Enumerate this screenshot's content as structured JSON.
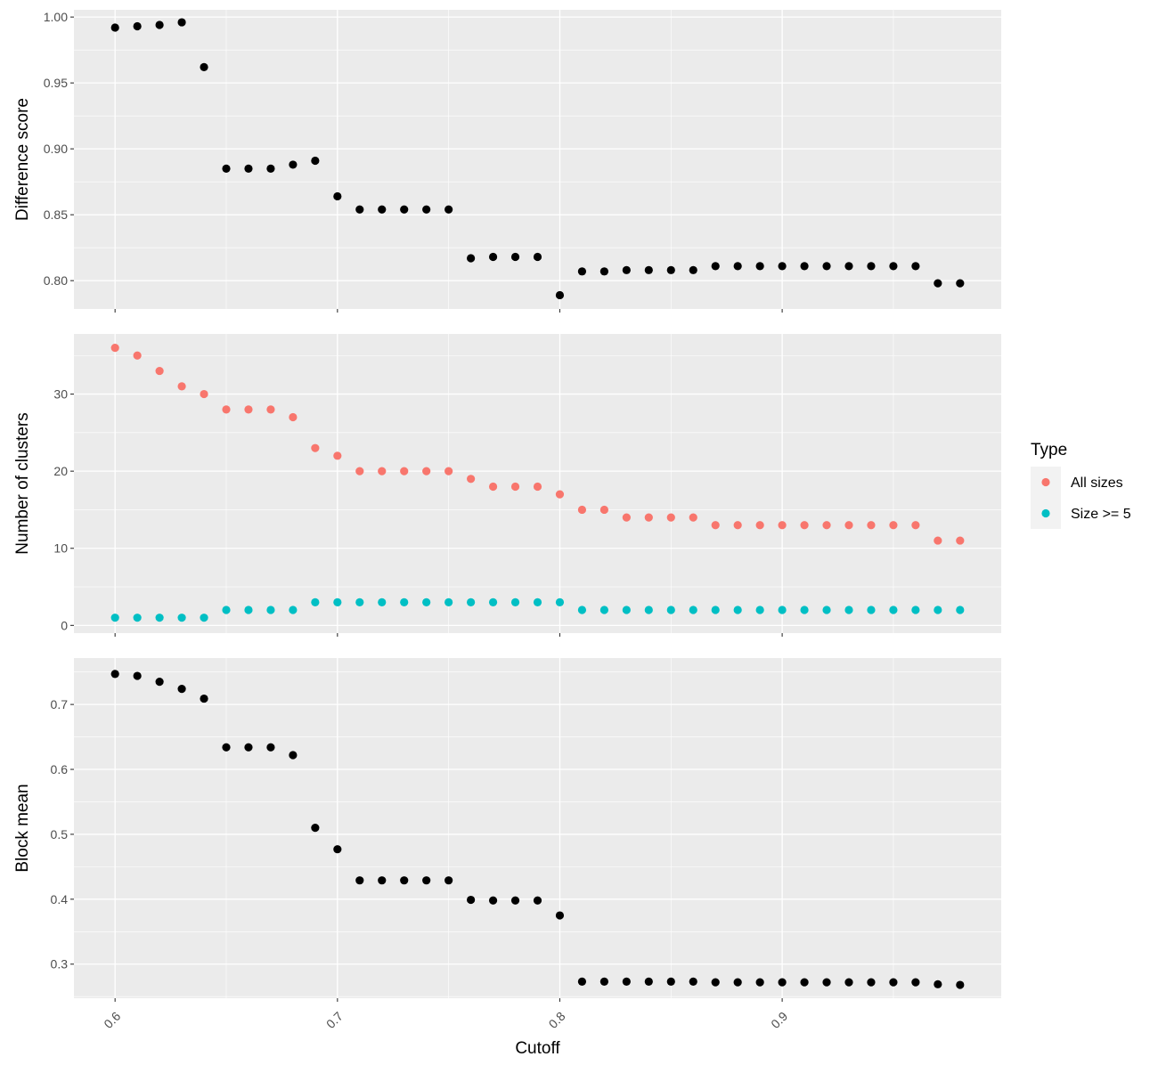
{
  "chart_data": [
    {
      "type": "scatter",
      "ylabel": "Difference score",
      "xlabel": "",
      "xlim": [
        0.5815,
        0.9985
      ],
      "ylim": [
        0.7785,
        1.0055
      ],
      "yticks": [
        0.8,
        0.85,
        0.9,
        0.95,
        1.0
      ],
      "ytick_labels": [
        "0.80",
        "0.85",
        "0.90",
        "0.95",
        "1.00"
      ],
      "grid": true,
      "series": [
        {
          "color": "#000000",
          "x": [
            0.6,
            0.61,
            0.62,
            0.63,
            0.64,
            0.65,
            0.66,
            0.67,
            0.68,
            0.69,
            0.7,
            0.71,
            0.72,
            0.73,
            0.74,
            0.75,
            0.76,
            0.77,
            0.78,
            0.79,
            0.8,
            0.81,
            0.82,
            0.83,
            0.84,
            0.85,
            0.86,
            0.87,
            0.88,
            0.89,
            0.9,
            0.91,
            0.92,
            0.93,
            0.94,
            0.95,
            0.96,
            0.97,
            0.98
          ],
          "values": [
            0.992,
            0.993,
            0.994,
            0.996,
            0.962,
            0.885,
            0.885,
            0.885,
            0.888,
            0.891,
            0.864,
            0.854,
            0.854,
            0.854,
            0.854,
            0.854,
            0.817,
            0.818,
            0.818,
            0.818,
            0.789,
            0.807,
            0.807,
            0.808,
            0.808,
            0.808,
            0.808,
            0.811,
            0.811,
            0.811,
            0.811,
            0.811,
            0.811,
            0.811,
            0.811,
            0.811,
            0.811,
            0.798,
            0.798
          ]
        }
      ]
    },
    {
      "type": "scatter",
      "ylabel": "Number of clusters",
      "xlabel": "",
      "xlim": [
        0.5815,
        0.9985
      ],
      "ylim": [
        -1.0,
        37.8
      ],
      "yticks": [
        0,
        10,
        20,
        30
      ],
      "ytick_labels": [
        "0",
        "10",
        "20",
        "30"
      ],
      "grid": true,
      "legend": {
        "title": "Type",
        "position": "right",
        "entries": [
          "All sizes",
          "Size >= 5"
        ]
      },
      "series": [
        {
          "name": "All sizes",
          "color": "#F8766D",
          "x": [
            0.6,
            0.61,
            0.62,
            0.63,
            0.64,
            0.65,
            0.66,
            0.67,
            0.68,
            0.69,
            0.7,
            0.71,
            0.72,
            0.73,
            0.74,
            0.75,
            0.76,
            0.77,
            0.78,
            0.79,
            0.8,
            0.81,
            0.82,
            0.83,
            0.84,
            0.85,
            0.86,
            0.87,
            0.88,
            0.89,
            0.9,
            0.91,
            0.92,
            0.93,
            0.94,
            0.95,
            0.96,
            0.97,
            0.98
          ],
          "values": [
            36,
            35,
            33,
            31,
            30,
            28,
            28,
            28,
            27,
            23,
            22,
            20,
            20,
            20,
            20,
            20,
            19,
            18,
            18,
            18,
            17,
            15,
            15,
            14,
            14,
            14,
            14,
            13,
            13,
            13,
            13,
            13,
            13,
            13,
            13,
            13,
            13,
            11,
            11
          ]
        },
        {
          "name": "Size >= 5",
          "color": "#00BFC4",
          "x": [
            0.6,
            0.61,
            0.62,
            0.63,
            0.64,
            0.65,
            0.66,
            0.67,
            0.68,
            0.69,
            0.7,
            0.71,
            0.72,
            0.73,
            0.74,
            0.75,
            0.76,
            0.77,
            0.78,
            0.79,
            0.8,
            0.81,
            0.82,
            0.83,
            0.84,
            0.85,
            0.86,
            0.87,
            0.88,
            0.89,
            0.9,
            0.91,
            0.92,
            0.93,
            0.94,
            0.95,
            0.96,
            0.97,
            0.98
          ],
          "values": [
            1,
            1,
            1,
            1,
            1,
            2,
            2,
            2,
            2,
            3,
            3,
            3,
            3,
            3,
            3,
            3,
            3,
            3,
            3,
            3,
            3,
            2,
            2,
            2,
            2,
            2,
            2,
            2,
            2,
            2,
            2,
            2,
            2,
            2,
            2,
            2,
            2,
            2,
            2
          ]
        }
      ]
    },
    {
      "type": "scatter",
      "ylabel": "Block mean",
      "xlabel": "Cutoff",
      "xlim": [
        0.5815,
        0.9985
      ],
      "ylim": [
        0.2475,
        0.7715
      ],
      "yticks": [
        0.3,
        0.4,
        0.5,
        0.6,
        0.7
      ],
      "ytick_labels": [
        "0.3",
        "0.4",
        "0.5",
        "0.6",
        "0.7"
      ],
      "xticks": [
        0.6,
        0.7,
        0.8,
        0.9
      ],
      "xtick_labels": [
        "0.6",
        "0.7",
        "0.8",
        "0.9"
      ],
      "grid": true,
      "series": [
        {
          "color": "#000000",
          "x": [
            0.6,
            0.61,
            0.62,
            0.63,
            0.64,
            0.65,
            0.66,
            0.67,
            0.68,
            0.69,
            0.7,
            0.71,
            0.72,
            0.73,
            0.74,
            0.75,
            0.76,
            0.77,
            0.78,
            0.79,
            0.8,
            0.81,
            0.82,
            0.83,
            0.84,
            0.85,
            0.86,
            0.87,
            0.88,
            0.89,
            0.9,
            0.91,
            0.92,
            0.93,
            0.94,
            0.95,
            0.96,
            0.97,
            0.98
          ],
          "values": [
            0.747,
            0.744,
            0.735,
            0.724,
            0.709,
            0.634,
            0.634,
            0.634,
            0.622,
            0.51,
            0.477,
            0.429,
            0.429,
            0.429,
            0.429,
            0.429,
            0.399,
            0.398,
            0.398,
            0.398,
            0.375,
            0.273,
            0.273,
            0.273,
            0.273,
            0.273,
            0.273,
            0.272,
            0.272,
            0.272,
            0.272,
            0.272,
            0.272,
            0.272,
            0.272,
            0.272,
            0.272,
            0.269,
            0.268
          ]
        }
      ]
    }
  ]
}
